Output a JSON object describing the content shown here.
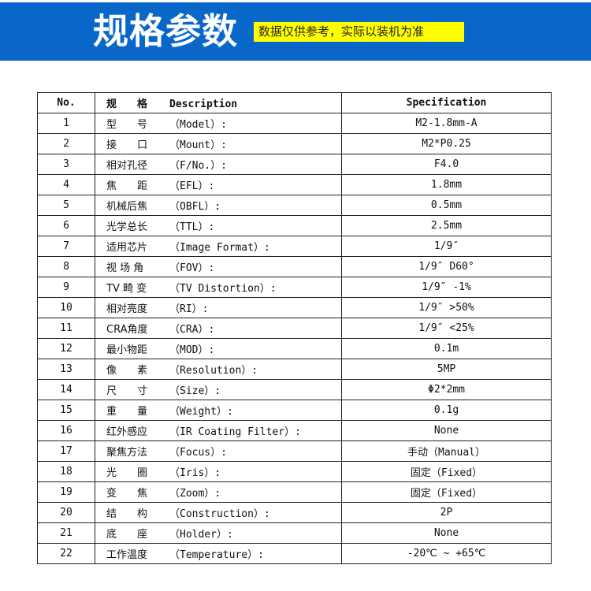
{
  "header": {
    "title": "规格参数",
    "note": "数据仅供参考，实际以装机为准",
    "band_color": "#0867c9",
    "note_color": "#ffff00"
  },
  "table": {
    "headers": {
      "no": "No.",
      "desc_cn": "规　　格",
      "desc_en": "Description",
      "spec": "Specification"
    },
    "rows": [
      {
        "no": "1",
        "cn": "型　　号",
        "en": "（Model）:",
        "spec": "M2-1.8mm-A"
      },
      {
        "no": "2",
        "cn": "接　　口",
        "en": "（Mount）:",
        "spec": "M2*P0.25"
      },
      {
        "no": "3",
        "cn": "相对孔径",
        "en": "（F/No.）:",
        "spec": "F4.0"
      },
      {
        "no": "4",
        "cn": "焦　　距",
        "en": "（EFL）:",
        "spec": "1.8mm"
      },
      {
        "no": "5",
        "cn": "机械后焦",
        "en": "（OBFL）:",
        "spec": "0.5mm"
      },
      {
        "no": "6",
        "cn": "光学总长",
        "en": "（TTL）:",
        "spec": "2.5mm"
      },
      {
        "no": "7",
        "cn": "适用芯片",
        "en": "（Image Format）:",
        "spec": "1/9″"
      },
      {
        "no": "8",
        "cn": "视 场 角",
        "en": "（FOV）:",
        "spec": "1/9″ D60°"
      },
      {
        "no": "9",
        "cn": "TV 畸 变",
        "en": "（TV Distortion）:",
        "spec": "1/9″ -1%"
      },
      {
        "no": "10",
        "cn": "相对亮度",
        "en": "（RI）:",
        "spec": "1/9″ >50%"
      },
      {
        "no": "11",
        "cn": "CRA角度",
        "en": "（CRA）:",
        "spec": "1/9″ <25%"
      },
      {
        "no": "12",
        "cn": "最小物距",
        "en": "（MOD）:",
        "spec": "0.1m"
      },
      {
        "no": "13",
        "cn": "像　　素",
        "en": "（Resolution）:",
        "spec": "5MP"
      },
      {
        "no": "14",
        "cn": "尺　　寸",
        "en": "（Size）:",
        "spec": "Φ2*2mm"
      },
      {
        "no": "15",
        "cn": "重　　量",
        "en": "（Weight）:",
        "spec": "0.1g"
      },
      {
        "no": "16",
        "cn": "红外感应",
        "en": "（IR Coating Filter）:",
        "spec": "None"
      },
      {
        "no": "17",
        "cn": "聚焦方法",
        "en": "（Focus）:",
        "spec": "手动（Manual）"
      },
      {
        "no": "18",
        "cn": "光　　圈",
        "en": "（Iris）:",
        "spec": "固定（Fixed）"
      },
      {
        "no": "19",
        "cn": "变　　焦",
        "en": "（Zoom）:",
        "spec": "固定（Fixed）"
      },
      {
        "no": "20",
        "cn": "结　　构",
        "en": "（Construction）:",
        "spec": "2P"
      },
      {
        "no": "21",
        "cn": "底　　座",
        "en": "（Holder）:",
        "spec": "None"
      },
      {
        "no": "22",
        "cn": "工作温度",
        "en": "（Temperature）:",
        "spec": "-20℃ ~ +65℃"
      }
    ]
  }
}
